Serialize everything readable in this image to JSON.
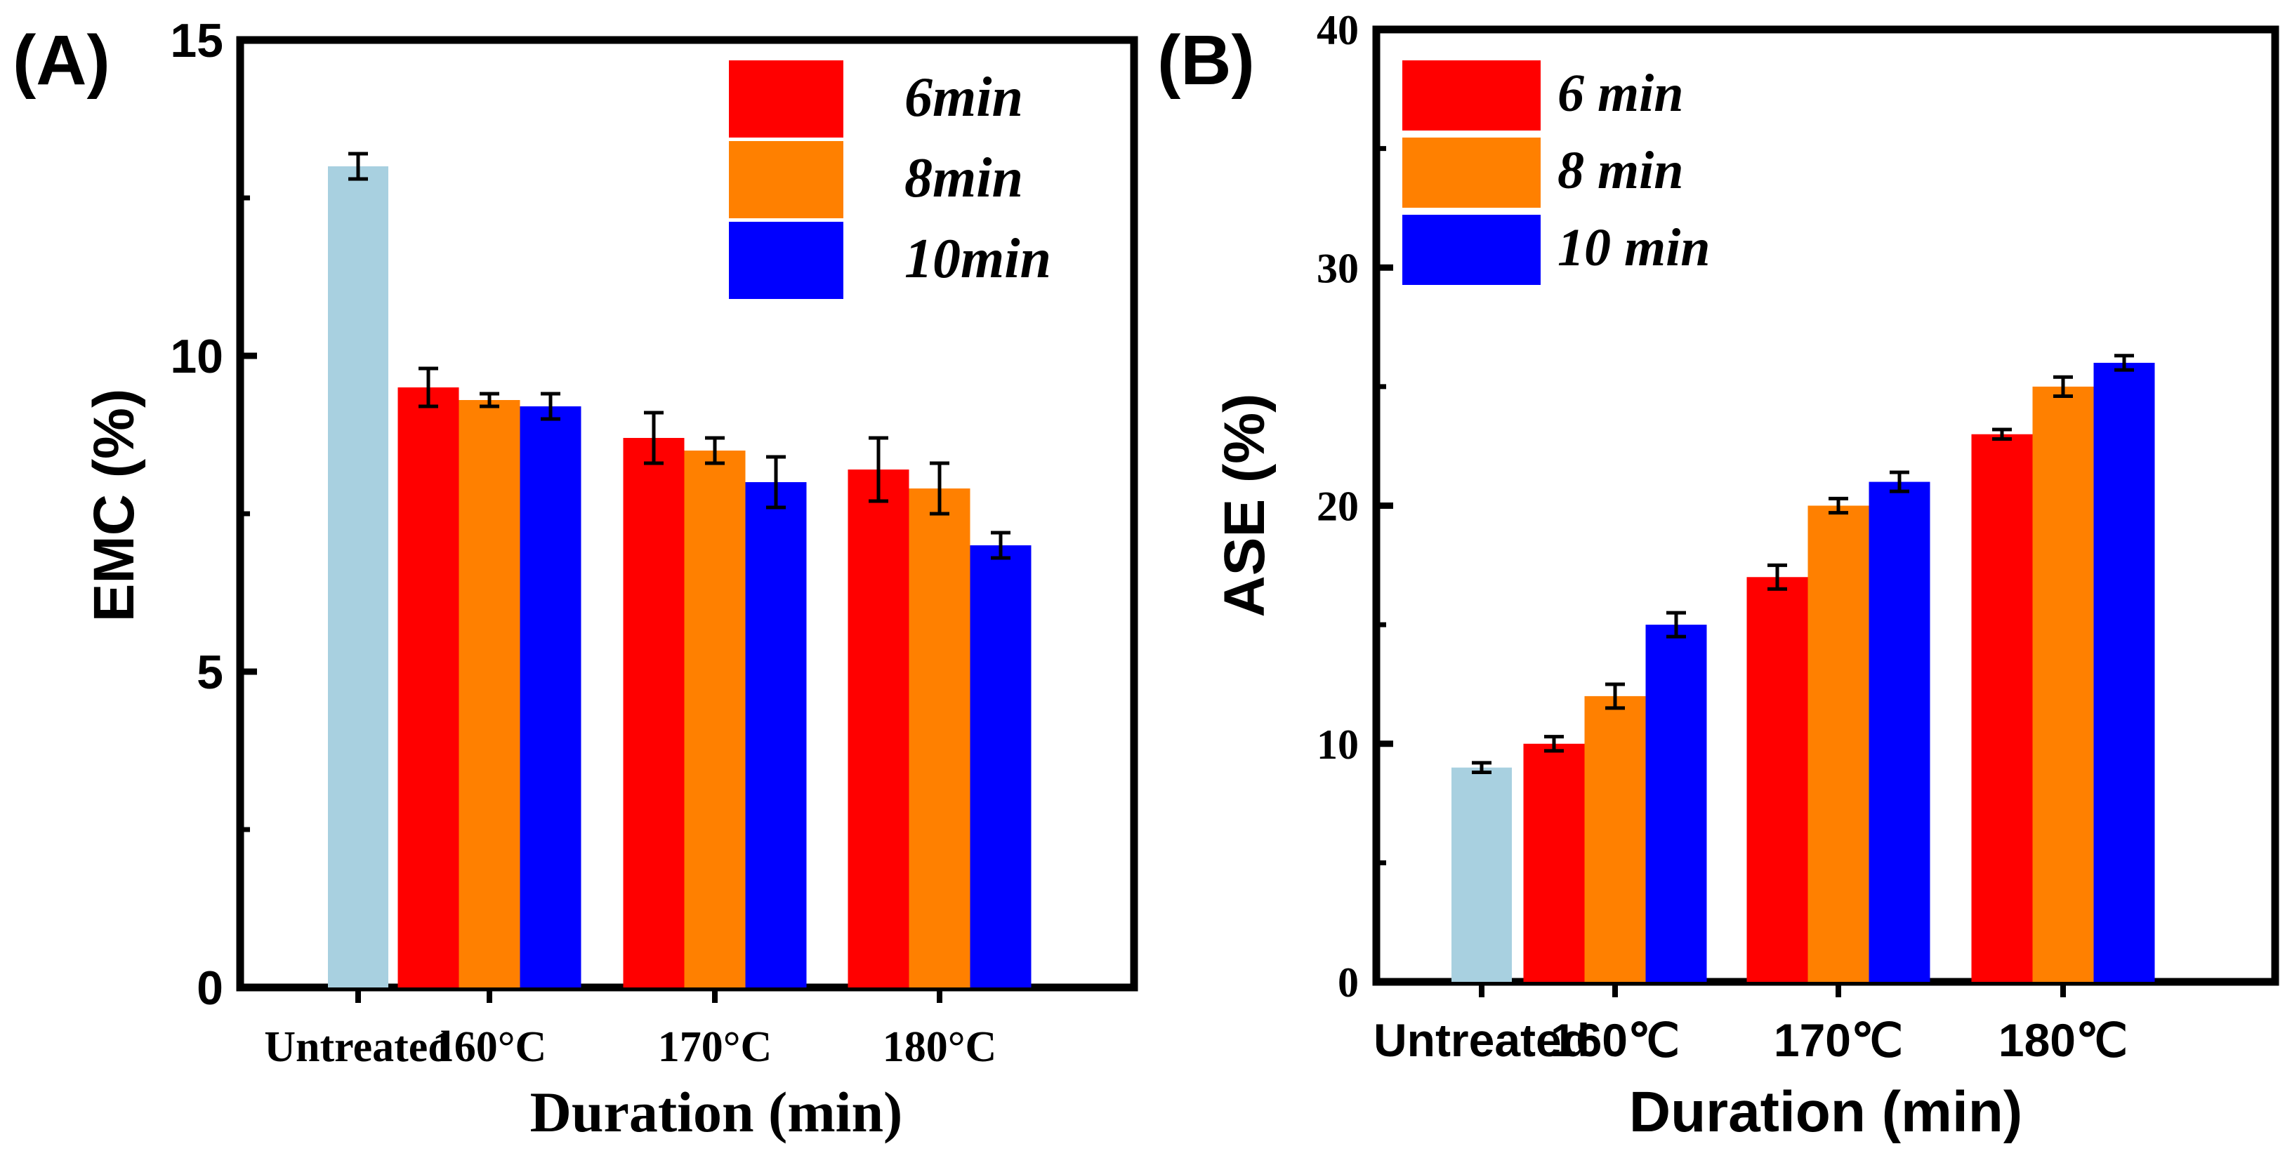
{
  "colors": {
    "untreated": "#a8d0e0",
    "6min": "#ff0000",
    "8min": "#ff8000",
    "10min": "#0000ff",
    "axis": "#000000"
  },
  "chart_data": [
    {
      "panel": "(A)",
      "type": "bar",
      "xlabel": "Duration (min)",
      "ylabel": "EMC (%)",
      "ylim": [
        0,
        15
      ],
      "yticks": [
        0,
        5,
        10,
        15
      ],
      "untreated": {
        "label": "Untreated",
        "value": 13.0,
        "error": 0.2
      },
      "categories": [
        "160°C",
        "170°C",
        "180°C"
      ],
      "legend_position": "top-right",
      "series": [
        {
          "name": "6min",
          "key": "6min",
          "values": [
            9.5,
            8.7,
            8.2
          ],
          "errors": [
            0.3,
            0.4,
            0.5
          ]
        },
        {
          "name": "8min",
          "key": "8min",
          "values": [
            9.3,
            8.5,
            7.9
          ],
          "errors": [
            0.1,
            0.2,
            0.4
          ]
        },
        {
          "name": "10min",
          "key": "10min",
          "values": [
            9.2,
            8.0,
            7.0
          ],
          "errors": [
            0.2,
            0.4,
            0.2
          ]
        }
      ]
    },
    {
      "panel": "(B)",
      "type": "bar",
      "xlabel": "Duration (min)",
      "ylabel": "ASE (%)",
      "ylim": [
        0,
        40
      ],
      "yticks": [
        0,
        10,
        20,
        30,
        40
      ],
      "untreated": {
        "label": "Untreated",
        "value": 9.0,
        "error": 0.2
      },
      "categories": [
        "160℃",
        "170℃",
        "180℃"
      ],
      "legend_position": "top-left",
      "series": [
        {
          "name": "6 min",
          "key": "6min",
          "values": [
            10.0,
            17.0,
            23.0
          ],
          "errors": [
            0.3,
            0.5,
            0.2
          ]
        },
        {
          "name": "8 min",
          "key": "8min",
          "values": [
            12.0,
            20.0,
            25.0
          ],
          "errors": [
            0.5,
            0.3,
            0.4
          ]
        },
        {
          "name": "10 min",
          "key": "10min",
          "values": [
            15.0,
            21.0,
            26.0
          ],
          "errors": [
            0.5,
            0.4,
            0.3
          ]
        }
      ]
    }
  ]
}
